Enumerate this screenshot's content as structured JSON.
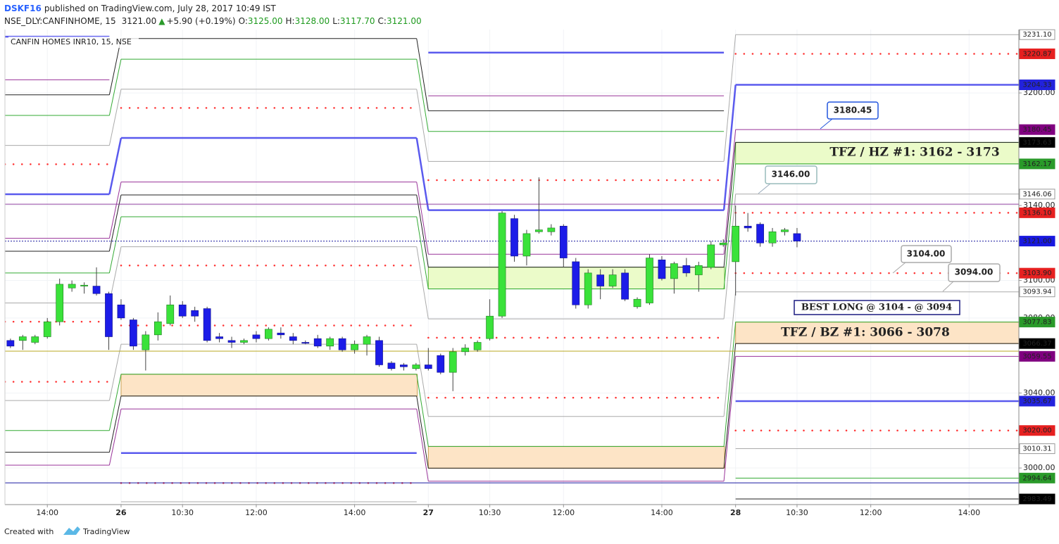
{
  "header": {
    "author": "DSKF16",
    "published": "published on TradingView.com, July 28, 2017 10:49 IST"
  },
  "chart_data": {
    "type": "candlestick",
    "symbol": "NSE_DLY:CANFINHOME, 15",
    "last": "3121.00",
    "change_arrow": "▲",
    "change": "+5.90 (+0.19%)",
    "ohlc_labels": [
      {
        "key": "O:",
        "value": "3125.00"
      },
      {
        "key": "H:",
        "value": "3128.00"
      },
      {
        "key": "L:",
        "value": "3117.70"
      },
      {
        "key": "C:",
        "value": "3121.00"
      }
    ],
    "legend_title": "CANFIN HOMES INR10, 15, NSE",
    "x": [
      0,
      1,
      2,
      3,
      4,
      5,
      6,
      7,
      8,
      9,
      10,
      11,
      12,
      13,
      14,
      15,
      16,
      17,
      18,
      19,
      20,
      21,
      22,
      23,
      24,
      25,
      26,
      27,
      28,
      29,
      30,
      31,
      32,
      33,
      34,
      35,
      36,
      37,
      38,
      39,
      40,
      41,
      42,
      43,
      44,
      45,
      46,
      47,
      48,
      49,
      50,
      51,
      52,
      53,
      54,
      55,
      56,
      57,
      58,
      59,
      60,
      61,
      62,
      63,
      64
    ],
    "open": [
      3068,
      3068,
      3067,
      3070,
      3078,
      3096,
      3097,
      3097,
      3093,
      3087,
      3079,
      3063,
      3071,
      3077,
      3087,
      3084,
      3085,
      3070,
      3068,
      3067,
      3071,
      3069,
      3072,
      3070,
      3067,
      3069,
      3065,
      3069,
      3063,
      3066,
      3068,
      3056,
      3055,
      3053,
      3055,
      3060,
      3051,
      3062,
      3063,
      3069,
      3081,
      3133,
      3113,
      3126,
      3126,
      3129,
      3110,
      3087,
      3103,
      3097,
      3104,
      3086,
      3088,
      3111,
      3101,
      3108,
      3103,
      3107,
      3119,
      3110,
      3129,
      3130,
      3120,
      3126,
      3125
    ],
    "high": [
      3069,
      3071,
      3071,
      3080,
      3101,
      3100,
      3099,
      3107,
      3094,
      3090,
      3080,
      3073,
      3083,
      3092,
      3089,
      3086,
      3086,
      3072,
      3070,
      3069,
      3073,
      3075,
      3075,
      3072,
      3068,
      3071,
      3070,
      3070,
      3068,
      3071,
      3070,
      3057,
      3056,
      3056,
      3064,
      3061,
      3064,
      3066,
      3068,
      3090,
      3137,
      3135,
      3127,
      3155,
      3130,
      3130,
      3112,
      3106,
      3106,
      3106,
      3106,
      3091,
      3114,
      3113,
      3110,
      3112,
      3110,
      3121,
      3122,
      3140,
      3136,
      3131,
      3128,
      3128,
      3128
    ],
    "low": [
      3064,
      3063,
      3066,
      3069,
      3076,
      3094,
      3093,
      3092,
      3063,
      3079,
      3063,
      3052,
      3068,
      3076,
      3080,
      3078,
      3067,
      3067,
      3064,
      3066,
      3067,
      3068,
      3069,
      3066,
      3066,
      3064,
      3063,
      3062,
      3061,
      3060,
      3054,
      3052,
      3052,
      3052,
      3052,
      3050,
      3041,
      3060,
      3062,
      3068,
      3080,
      3110,
      3108,
      3125,
      3124,
      3107,
      3085,
      3085,
      3090,
      3096,
      3089,
      3085,
      3087,
      3100,
      3093,
      3102,
      3094,
      3106,
      3118,
      3092,
      3126,
      3118,
      3118,
      3124,
      3117.7
    ],
    "close": [
      3065,
      3070,
      3070,
      3078,
      3098,
      3098,
      3097.5,
      3093,
      3070,
      3080,
      3065,
      3071,
      3078,
      3087,
      3081,
      3081,
      3068,
      3069,
      3067,
      3068,
      3069,
      3074,
      3071,
      3068,
      3066.5,
      3065,
      3069,
      3063,
      3066,
      3070,
      3055,
      3053,
      3054,
      3055,
      3053,
      3051,
      3062,
      3064,
      3067,
      3081,
      3136,
      3113,
      3125,
      3127,
      3128,
      3112,
      3087,
      3104,
      3097,
      3103,
      3090,
      3090,
      3112,
      3101,
      3109,
      3104,
      3108,
      3119,
      3120,
      3129,
      3128,
      3120,
      3126,
      3127,
      3121
    ],
    "up_color": "#3ae23a",
    "down_color": "#1c1ce8",
    "xlim": [
      -0.45,
      82.05
    ],
    "xticks": [
      {
        "value": 3,
        "label": "14:00"
      },
      {
        "value": 9,
        "label": "26"
      },
      {
        "value": 14,
        "label": "10:30"
      },
      {
        "value": 20,
        "label": "12:00"
      },
      {
        "value": 28,
        "label": "14:00"
      },
      {
        "value": 34,
        "label": "27"
      },
      {
        "value": 39,
        "label": "10:30"
      },
      {
        "value": 45,
        "label": "12:00"
      },
      {
        "value": 53,
        "label": "14:00"
      },
      {
        "value": 59,
        "label": "28"
      },
      {
        "value": 64,
        "label": "10:30"
      },
      {
        "value": 70,
        "label": "12:00"
      },
      {
        "value": 78,
        "label": "14:00"
      }
    ],
    "ylim": [
      2980.5,
      3233.8
    ],
    "yticks": [
      {
        "value": 3200,
        "label": "3200.00"
      },
      {
        "value": 3140,
        "label": "3140.00"
      },
      {
        "value": 3100,
        "label": "3100.00"
      },
      {
        "value": 3080,
        "label": "3080.00"
      },
      {
        "value": 3040,
        "label": "3040.00"
      },
      {
        "value": 3000,
        "label": "3000.00"
      }
    ],
    "grid": true,
    "session_starts": [
      9,
      34,
      59
    ],
    "levels": [
      {
        "color": "#5a5aee",
        "style": "solid",
        "width": 2.5,
        "values": [
          3230,
          null,
          3221.5,
          null
        ]
      },
      {
        "color": "#993399",
        "style": "solid",
        "width": 1,
        "values": [
          3207,
          null,
          3198.5,
          null
        ]
      },
      {
        "color": "#222222",
        "style": "solid",
        "width": 1,
        "values": [
          3199,
          3229,
          3190.5,
          null
        ]
      },
      {
        "color": "#33aa33",
        "style": "solid",
        "width": 1,
        "values": [
          3188,
          3218,
          3179.5,
          null
        ]
      },
      {
        "color": "#aaaaaa",
        "style": "solid",
        "width": 1,
        "values": [
          3172,
          3202,
          3163.5,
          3231.1
        ]
      },
      {
        "color": "#ff3333",
        "style": "dotted",
        "width": 2.5,
        "values": [
          3162,
          3192,
          3153.5,
          3220.87
        ]
      },
      {
        "color": "#5a5aee",
        "style": "solid",
        "width": 2.5,
        "values": [
          3146,
          3176,
          3137.5,
          3204.33
        ]
      },
      {
        "color": "#993399",
        "style": "solid",
        "width": 1,
        "values": [
          3122.5,
          3152.5,
          3114,
          3180.45
        ]
      },
      {
        "color": "#222222",
        "style": "solid",
        "width": 1,
        "values": [
          3115.6,
          3145.6,
          3107.1,
          3173.63
        ]
      },
      {
        "color": "#33aa33",
        "style": "solid",
        "width": 1,
        "values": [
          3104,
          3134,
          3095.5,
          3162.17
        ]
      },
      {
        "color": "#aaaaaa",
        "style": "solid",
        "width": 1,
        "values": [
          3088,
          3118,
          3079.5,
          3146.06
        ]
      },
      {
        "color": "#ff3333",
        "style": "dotted",
        "width": 2.5,
        "values": [
          3078,
          3108,
          3069.5,
          3136.1
        ]
      },
      {
        "color": "#ff3333",
        "style": "dotted",
        "width": 2.5,
        "values": [
          3046,
          3076,
          3037.5,
          3103.9
        ]
      },
      {
        "color": "#aaaaaa",
        "style": "solid",
        "width": 1,
        "values": [
          3036,
          3066,
          3027.5,
          3093.94
        ]
      },
      {
        "color": "#33aa33",
        "style": "solid",
        "width": 1,
        "values": [
          3020,
          3050,
          3011.5,
          3077.83
        ]
      },
      {
        "color": "#222222",
        "style": "solid",
        "width": 1,
        "values": [
          3008.4,
          3038.4,
          2999.9,
          3066.37
        ]
      },
      {
        "color": "#993399",
        "style": "solid",
        "width": 1,
        "values": [
          3001.5,
          3031.5,
          2993,
          3059.55
        ]
      },
      {
        "color": "#5a5aee",
        "style": "solid",
        "width": 2.5,
        "values": [
          null,
          3008,
          null,
          3035.67
        ]
      },
      {
        "color": "#ff3333",
        "style": "dotted",
        "width": 2.5,
        "values": [
          null,
          2992,
          null,
          3020
        ]
      },
      {
        "color": "#aaaaaa",
        "style": "solid",
        "width": 1,
        "values": [
          null,
          2982,
          null,
          3010.31
        ]
      },
      {
        "color": "#33aa33",
        "style": "solid",
        "width": 1,
        "values": [
          null,
          null,
          null,
          2994.64
        ]
      },
      {
        "color": "#222222",
        "style": "solid",
        "width": 1,
        "values": [
          null,
          null,
          null,
          2983.49
        ]
      }
    ],
    "zones": [
      {
        "low": 3038.4,
        "high": 3050,
        "x": [
          9,
          33.1
        ],
        "fill": "#fde4c6",
        "color": "#c8a050"
      },
      {
        "low": 3095.5,
        "high": 3107.1,
        "x": [
          34,
          58.1
        ],
        "fill": "#ebfbc9",
        "color": "#6abf40"
      },
      {
        "low": 2999.9,
        "high": 3011.5,
        "x": [
          34,
          58.1
        ],
        "fill": "#fde4c6",
        "color": "#c8a050"
      },
      {
        "low": 3162.17,
        "high": 3173.63,
        "x": [
          59,
          82.05
        ],
        "fill": "#ebfbc9",
        "color": "#6abf40"
      },
      {
        "low": 3066.37,
        "high": 3077.83,
        "x": [
          59,
          82.05
        ],
        "fill": "#fde4c6",
        "color": "#c8a050"
      }
    ],
    "hlines": [
      {
        "value": 3140.7,
        "color": "#9040a0",
        "style": "solid"
      },
      {
        "value": 3062.3,
        "color": "#b8a820",
        "style": "solid"
      },
      {
        "value": 2992.1,
        "color": "#1a1aa0",
        "style": "solid"
      },
      {
        "value": 3121,
        "color": "#1a1aa0",
        "style": "dotted"
      }
    ],
    "price_tags": [
      {
        "value": 3231.1,
        "label": "3231.10",
        "color": "#ffffff",
        "text_color": "#555555"
      },
      {
        "value": 3220.87,
        "label": "3220.87",
        "color": "#e62020",
        "text_color": "#ffffff"
      },
      {
        "value": 3204.33,
        "label": "3204.33",
        "color": "#2222dd",
        "text_color": "#ffffff"
      },
      {
        "value": 3180.45,
        "label": "3180.45",
        "color": "#800080",
        "text_color": "#ffffff"
      },
      {
        "value": 3173.63,
        "label": "3173.63",
        "color": "#000000",
        "text_color": "#ffffff"
      },
      {
        "value": 3162.17,
        "label": "3162.17",
        "color": "#2a9a2a",
        "text_color": "#ffffff"
      },
      {
        "value": 3146.06,
        "label": "3146.06",
        "color": "#ffffff",
        "text_color": "#555555"
      },
      {
        "value": 3136.1,
        "label": "3136.10",
        "color": "#e62020",
        "text_color": "#ffffff"
      },
      {
        "value": 3121,
        "label": "3121.00",
        "color": "#1818e0",
        "text_color": "#ffffff"
      },
      {
        "value": 3103.9,
        "label": "3103.90",
        "color": "#e62020",
        "text_color": "#ffffff"
      },
      {
        "value": 3093.94,
        "label": "3093.94",
        "color": "#ffffff",
        "text_color": "#555555"
      },
      {
        "value": 3077.83,
        "label": "3077.83",
        "color": "#2a9a2a",
        "text_color": "#ffffff"
      },
      {
        "value": 3066.37,
        "label": "3066.37",
        "color": "#000000",
        "text_color": "#ffffff"
      },
      {
        "value": 3059.55,
        "label": "3059.55",
        "color": "#800080",
        "text_color": "#ffffff"
      },
      {
        "value": 3035.67,
        "label": "3035.67",
        "color": "#2222dd",
        "text_color": "#ffffff"
      },
      {
        "value": 3020,
        "label": "3020.00",
        "color": "#e62020",
        "text_color": "#ffffff"
      },
      {
        "value": 3010.31,
        "label": "3010.31",
        "color": "#ffffff",
        "text_color": "#555555"
      },
      {
        "value": 2994.64,
        "label": "2994.64",
        "color": "#2a9a2a",
        "text_color": "#ffffff"
      },
      {
        "value": 2983.49,
        "label": "2983.49",
        "color": "#000000",
        "text_color": "#ffffff"
      }
    ],
    "annotations": [
      "3180.45",
      "3146.00",
      "3104.00",
      "3094.00",
      "BEST LONG @ 3104 - @ 3094",
      "TFZ / HZ #1: 3162 - 3173",
      "TFZ / BZ #1: 3066 - 3078"
    ]
  },
  "footer": {
    "created": "Created with",
    "brand": "TradingView"
  }
}
